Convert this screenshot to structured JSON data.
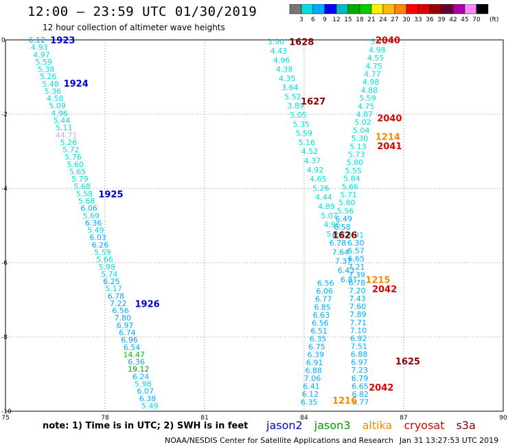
{
  "header": {
    "title": "12:00 – 23:59 UTC 01/30/2019",
    "subtitle": "12 hour collection of altimeter wave heights"
  },
  "colorbar": {
    "unit": "(ft)",
    "colors": [
      "#777777",
      "#00dddd",
      "#00aaff",
      "#0000ff",
      "#00bbbb",
      "#00aa00",
      "#00cc00",
      "#ffee00",
      "#ffbb00",
      "#ff8800",
      "#ff0000",
      "#dd0000",
      "#990000",
      "#660033",
      "#aa00aa",
      "#ff88ff",
      "#000000"
    ],
    "ticks": [
      "3",
      "6",
      "9",
      "12",
      "15",
      "18",
      "21",
      "24",
      "27",
      "30",
      "33",
      "36",
      "39",
      "42",
      "45",
      "70"
    ]
  },
  "footer": {
    "note": "note:  1) Time is in UTC;  2) SWH is in feet",
    "credit": "NOAA/NESDIS Center for Satellite Applications and Research",
    "timestamp": "Jan 31 13:27:53 UTC 2019"
  },
  "chart_data": {
    "type": "scatter",
    "title": "12:00 – 23:59 UTC 01/30/2019",
    "subtitle": "12 hour collection of altimeter wave heights",
    "xlim": [
      75,
      90
    ],
    "ylim": [
      -10,
      0
    ],
    "x_ticks": [
      75,
      78,
      81,
      84,
      87,
      90
    ],
    "y_ticks": [
      0,
      -2,
      -4,
      -6,
      -8,
      -10
    ],
    "grid": true,
    "series": [
      {
        "name": "jason2",
        "color": "#0000cc"
      },
      {
        "name": "jason3",
        "color": "#009900"
      },
      {
        "name": "altika",
        "color": "#ff8800"
      },
      {
        "name": "cryosat",
        "color": "#dd0000"
      },
      {
        "name": "s3a",
        "color": "#880000"
      }
    ],
    "tracks": [
      {
        "sat": "jason2",
        "x0": 75.95,
        "y0": 0.0,
        "x1": 79.35,
        "y1": -9.85,
        "values": [
          "6.12",
          "4.93",
          "4.97",
          "5.59",
          "5.38",
          "5.26",
          "5.48",
          "5.36",
          "4.58",
          "5.09",
          "4.96",
          "5.44",
          "5.11",
          "44.71",
          "5.26",
          "5.72",
          "5.76",
          "5.60",
          "5.65",
          "5.79",
          "5.68",
          "5.58",
          "5.68",
          "6.06",
          "5.69",
          "6.36",
          "5.49",
          "6.03",
          "6.26",
          "5.59",
          "5.66",
          "5.98",
          "5.74",
          "6.25",
          "5.17",
          "6.78",
          "7.22",
          "6.56",
          "7.80",
          "6.97",
          "6.74",
          "6.96",
          "6.54",
          "14.47",
          "6.36",
          "19.12",
          "6.24",
          "5.98",
          "6.07",
          "6.38",
          "5.49"
        ]
      },
      {
        "sat": "jason3",
        "x0": 83.15,
        "y0": -0.05,
        "x1": 85.35,
        "y1": -6.45,
        "values": [
          "3.90",
          "4.43",
          "4.96",
          "4.38",
          "4.35",
          "3.64",
          "5.52",
          "3.89",
          "5.05",
          "5.35",
          "5.59",
          "5.16",
          "4.52",
          "4.37",
          "4.92",
          "4.65",
          "5.26",
          "4.44",
          "4.89",
          "5.07",
          "4.96",
          "5.94",
          "6.78",
          "7.64",
          "7.37",
          "6.43",
          "6.81"
        ]
      },
      {
        "sat": "jason3",
        "x0": 84.65,
        "y0": -6.55,
        "x1": 84.15,
        "y1": -9.75,
        "values": [
          "6.56",
          "6.06",
          "6.77",
          "6.85",
          "6.63",
          "6.56",
          "6.51",
          "6.35",
          "6.75",
          "6.39",
          "6.91",
          "6.88",
          "7.06",
          "6.41",
          "6.12",
          "6.35"
        ]
      },
      {
        "sat": "jason3",
        "x0": 86.25,
        "y0": -0.05,
        "x1": 85.1,
        "y1": -5.25,
        "values": [
          "5.70",
          "4.98",
          "4.55",
          "4.75",
          "4.77",
          "4.98",
          "4.88",
          "5.59",
          "4.75",
          "4.87",
          "5.02",
          "5.04",
          "5.30",
          "5.13",
          "5.73",
          "5.80",
          "5.55",
          "5.84",
          "5.66",
          "5.71",
          "5.80",
          "5.56",
          "6.49",
          "6.58",
          "6.32"
        ]
      },
      {
        "sat": "jason3",
        "x0": 85.55,
        "y0": -5.25,
        "x1": 85.7,
        "y1": -9.75,
        "values": [
          "5.91",
          "6.30",
          "6.57",
          "6.65",
          "7.21",
          "7.39",
          "6.78",
          "7.20",
          "7.43",
          "7.60",
          "7.89",
          "7.71",
          "7.10",
          "6.92",
          "7.51",
          "6.88",
          "6.97",
          "7.23",
          "6.79",
          "6.65",
          "6.82",
          "6.77"
        ]
      }
    ],
    "time_labels": [
      {
        "text": "1923",
        "x": 76.35,
        "y": 0.0,
        "sat": "jason2"
      },
      {
        "text": "1924",
        "x": 76.75,
        "y": -1.17,
        "sat": "jason2"
      },
      {
        "text": "1925",
        "x": 77.8,
        "y": -4.15,
        "sat": "jason2"
      },
      {
        "text": "1926",
        "x": 78.9,
        "y": -7.1,
        "sat": "jason2"
      },
      {
        "text": "1628",
        "x": 83.55,
        "y": -0.05,
        "sat": "s3a"
      },
      {
        "text": "1627",
        "x": 83.9,
        "y": -1.65,
        "sat": "s3a"
      },
      {
        "text": "1626",
        "x": 84.85,
        "y": -5.25,
        "sat": "s3a"
      },
      {
        "text": "1625",
        "x": 86.75,
        "y": -8.65,
        "sat": "s3a"
      },
      {
        "text": "2040",
        "x": 86.15,
        "y": 0.0,
        "sat": "cryosat"
      },
      {
        "text": "2040",
        "x": 86.2,
        "y": -2.1,
        "sat": "cryosat"
      },
      {
        "text": "2041",
        "x": 86.2,
        "y": -2.85,
        "sat": "cryosat"
      },
      {
        "text": "2042",
        "x": 86.05,
        "y": -6.7,
        "sat": "cryosat"
      },
      {
        "text": "2042",
        "x": 85.95,
        "y": -9.35,
        "sat": "cryosat"
      },
      {
        "text": "1214",
        "x": 86.15,
        "y": -2.6,
        "sat": "altika"
      },
      {
        "text": "1215",
        "x": 85.85,
        "y": -6.45,
        "sat": "altika"
      },
      {
        "text": "1216",
        "x": 84.85,
        "y": -9.7,
        "sat": "altika"
      }
    ]
  }
}
